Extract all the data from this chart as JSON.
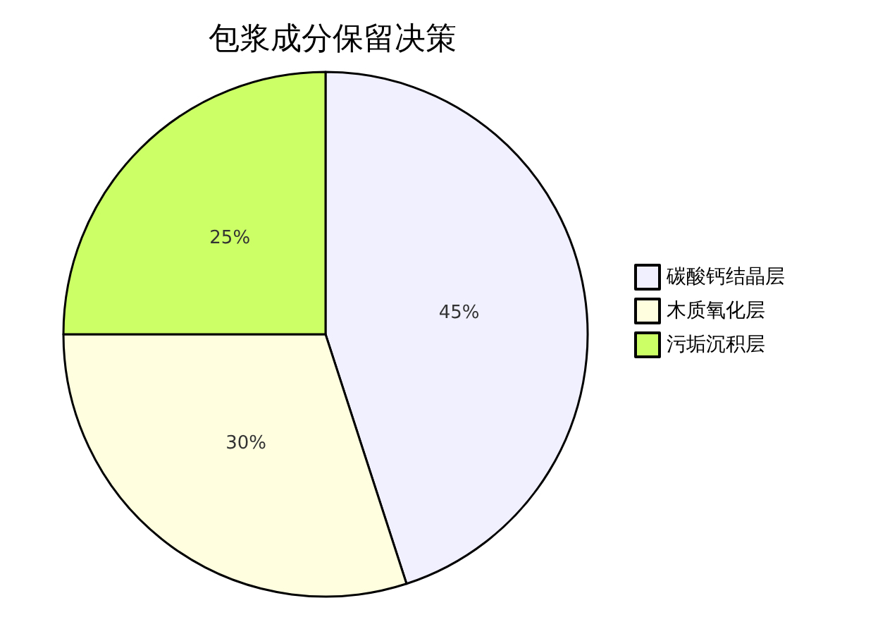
{
  "chart_data": {
    "type": "pie",
    "title": "包浆成分保留决策",
    "categories": [
      "碳酸钙结晶层",
      "木质氧化层",
      "污垢沉积层"
    ],
    "values": [
      45,
      30,
      25
    ],
    "value_labels": [
      "45%",
      "30%",
      "25%"
    ],
    "colors": [
      "#f0f0ff",
      "#ffffe0",
      "#ccff66"
    ],
    "legend": "right"
  }
}
